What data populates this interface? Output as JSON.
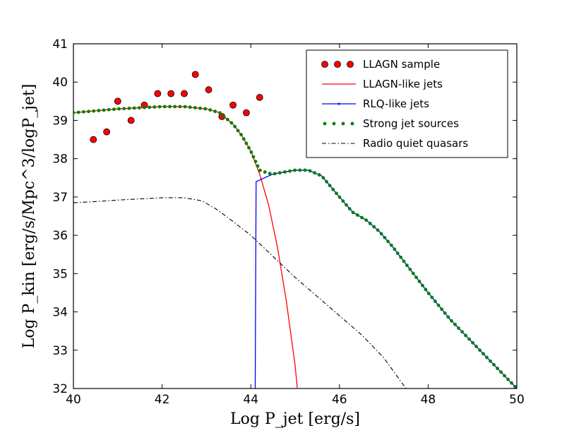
{
  "chart_data": {
    "type": "line",
    "title": "",
    "xlabel": "Log P_jet [erg/s]",
    "ylabel": "Log P_kin [erg/s/Mpc^3/logP_jet]",
    "xlim": [
      40,
      50
    ],
    "ylim": [
      32,
      41
    ],
    "xticks": [
      40,
      42,
      44,
      46,
      48,
      50
    ],
    "yticks": [
      32,
      33,
      34,
      35,
      36,
      37,
      38,
      39,
      40,
      41
    ],
    "xtick_labels": [
      "40",
      "42",
      "44",
      "46",
      "48",
      "50"
    ],
    "ytick_labels": [
      "32",
      "33",
      "34",
      "35",
      "36",
      "37",
      "38",
      "39",
      "40",
      "41"
    ],
    "legend_position": "top-right",
    "series": [
      {
        "name": "LLAGN sample",
        "kind": "scatter",
        "color": "#ff0000",
        "x": [
          40.45,
          40.75,
          41.0,
          41.3,
          41.6,
          41.9,
          42.2,
          42.5,
          42.75,
          43.05,
          43.35,
          43.6,
          43.9,
          44.2
        ],
        "y": [
          38.5,
          38.7,
          39.5,
          39.0,
          39.4,
          39.7,
          39.7,
          39.7,
          40.2,
          39.8,
          39.1,
          39.4,
          39.2,
          39.6
        ]
      },
      {
        "name": "LLAGN-like jets",
        "kind": "line",
        "color": "#ff0000",
        "x": [
          40,
          40.5,
          41,
          41.5,
          42,
          42.5,
          43,
          43.3,
          43.6,
          43.8,
          44.0,
          44.2,
          44.4,
          44.6,
          44.8,
          45.0,
          45.05
        ],
        "y": [
          39.2,
          39.25,
          39.3,
          39.33,
          39.36,
          39.36,
          39.3,
          39.2,
          38.9,
          38.6,
          38.2,
          37.6,
          36.8,
          35.7,
          34.3,
          32.6,
          32.0
        ]
      },
      {
        "name": "RLQ-like jets",
        "kind": "line",
        "color": "#0000ff",
        "x": [
          44.1,
          44.12,
          44.5,
          45.0,
          45.3,
          45.6,
          46.0,
          46.3,
          46.6,
          46.9,
          47.2,
          47.6,
          48.0,
          48.5,
          49.0,
          49.5,
          50.0
        ],
        "y": [
          32.0,
          37.4,
          37.6,
          37.7,
          37.7,
          37.55,
          37.0,
          36.6,
          36.4,
          36.1,
          35.7,
          35.1,
          34.5,
          33.8,
          33.2,
          32.6,
          32.0
        ]
      },
      {
        "name": "Strong jet sources",
        "kind": "dotted",
        "color": "#008000",
        "x": [
          40,
          40.5,
          41,
          41.5,
          42,
          42.5,
          43,
          43.3,
          43.6,
          43.8,
          44.0,
          44.2,
          44.4,
          44.5,
          45.0,
          45.3,
          45.6,
          46.0,
          46.3,
          46.6,
          46.9,
          47.2,
          47.6,
          48.0,
          48.5,
          49.0,
          49.5,
          50.0
        ],
        "y": [
          39.2,
          39.25,
          39.3,
          39.33,
          39.36,
          39.36,
          39.3,
          39.2,
          38.9,
          38.6,
          38.2,
          37.7,
          37.62,
          37.6,
          37.7,
          37.7,
          37.55,
          37.0,
          36.6,
          36.4,
          36.1,
          35.7,
          35.1,
          34.5,
          33.8,
          33.2,
          32.6,
          32.0
        ]
      },
      {
        "name": "Radio quiet quasars",
        "kind": "dashdot",
        "color": "#000000",
        "x": [
          40,
          40.5,
          41,
          41.5,
          42,
          42.5,
          42.9,
          43.2,
          43.5,
          44.0,
          44.5,
          45.0,
          45.5,
          46.0,
          46.5,
          47.0,
          47.5
        ],
        "y": [
          36.85,
          36.88,
          36.92,
          36.95,
          36.98,
          36.98,
          36.9,
          36.7,
          36.45,
          36.0,
          35.45,
          34.9,
          34.4,
          33.9,
          33.4,
          32.8,
          32.0
        ]
      }
    ]
  }
}
